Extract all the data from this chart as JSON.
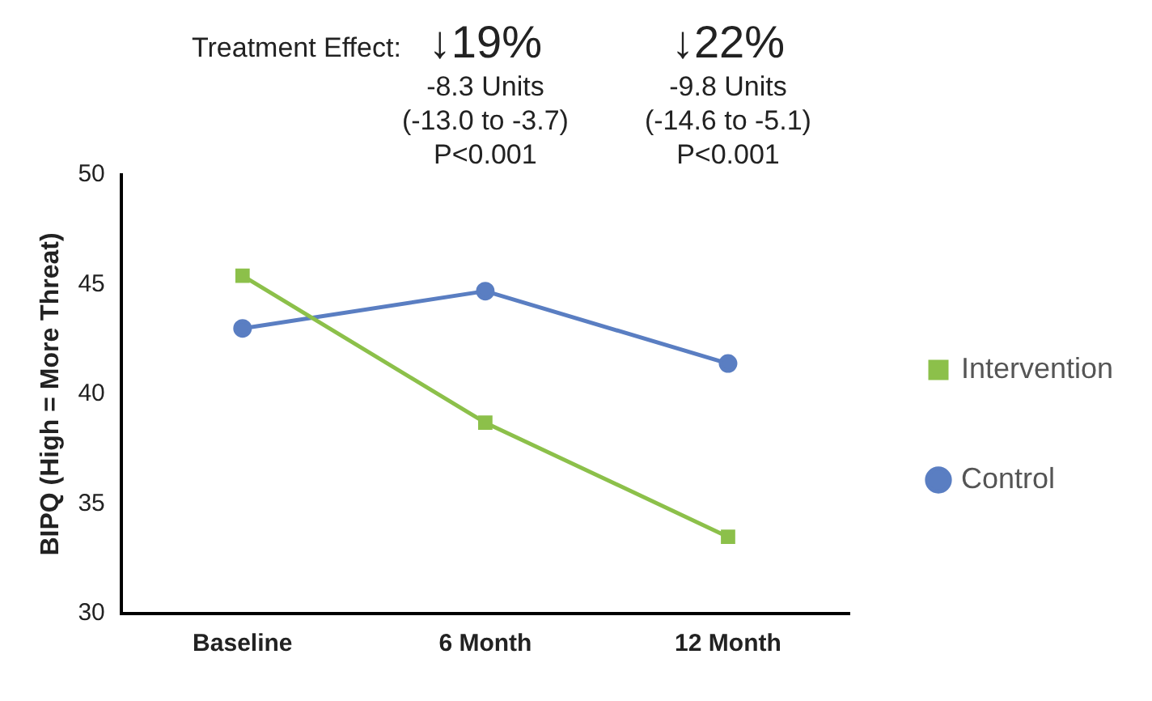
{
  "chart_data": {
    "type": "line",
    "ylabel": "BIPQ (High = More Threat)",
    "categories": [
      "Baseline",
      "6 Month",
      "12 Month"
    ],
    "series": [
      {
        "name": "Intervention",
        "color": "#8cc04a",
        "marker": "square",
        "values": [
          45.4,
          38.7,
          33.5
        ]
      },
      {
        "name": "Control",
        "color": "#5a7ec2",
        "marker": "circle",
        "values": [
          43.0,
          44.7,
          41.4
        ]
      }
    ],
    "ylim": [
      30,
      50
    ],
    "yticks": [
      30,
      35,
      40,
      45,
      50
    ],
    "grid": false,
    "legend": "right",
    "line_style": "solid",
    "annotations": [
      "Treatment Effect:",
      "↓19%\n-8.3 Units\n(-13.0 to -3.7)\nP<0.001",
      "↓22%\n-9.8 Units\n(-14.6 to -5.1)\nP<0.001"
    ]
  }
}
